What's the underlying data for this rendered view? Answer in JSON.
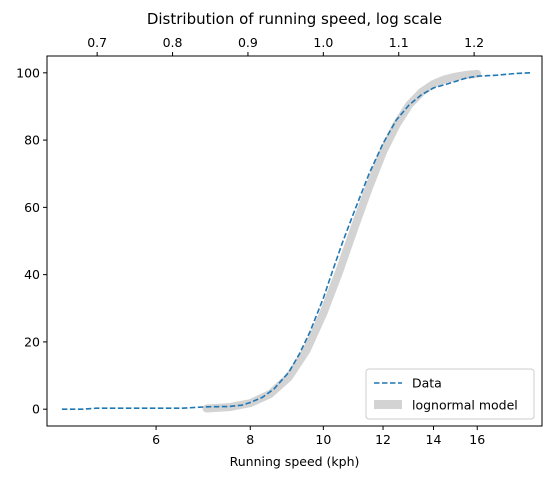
{
  "chart_data": {
    "type": "line",
    "title": "Distribution of running speed, log scale",
    "xlabel": "Running speed (kph)",
    "ylabel": "",
    "x_scale": "log",
    "xlim": [
      4.3,
      19.5
    ],
    "ylim": [
      -5,
      105
    ],
    "x_ticks": [
      6,
      8,
      10,
      12,
      14,
      16
    ],
    "y_ticks": [
      0,
      20,
      40,
      60,
      80,
      100
    ],
    "top_axis": {
      "scale": "log10 of speed",
      "ticks": [
        0.7,
        0.8,
        0.9,
        1.0,
        1.1,
        1.2
      ],
      "tick_labels": [
        "0.7",
        "0.8",
        "0.9",
        "1.0",
        "1.1",
        "1.2"
      ]
    },
    "legend": {
      "position": "lower-right"
    },
    "colors": {
      "data": "#1f77b4",
      "model": "#d3d3d3"
    },
    "series": [
      {
        "name": "Data",
        "style": "dashed",
        "x": [
          4.5,
          4.8,
          5.0,
          5.3,
          5.6,
          6.0,
          6.5,
          7.0,
          7.5,
          7.8,
          8.0,
          8.3,
          8.6,
          9.0,
          9.3,
          9.6,
          10.0,
          10.3,
          10.6,
          11.0,
          11.5,
          12.0,
          12.5,
          13.0,
          13.5,
          14.0,
          14.5,
          15.0,
          15.5,
          16.0,
          17.0,
          18.0,
          18.8
        ],
        "y": [
          0,
          0,
          0.3,
          0.3,
          0.3,
          0.3,
          0.3,
          0.7,
          0.8,
          1.2,
          2.0,
          3.5,
          6.0,
          11.0,
          16.5,
          23.0,
          33.0,
          41.5,
          49.5,
          59.0,
          70.0,
          79.0,
          86.0,
          90.5,
          93.5,
          95.5,
          96.5,
          97.5,
          98.5,
          99.0,
          99.3,
          99.8,
          100
        ]
      },
      {
        "name": "lognormal model",
        "style": "band",
        "x": [
          7.0,
          7.5,
          8.0,
          8.5,
          9.0,
          9.5,
          10.0,
          10.5,
          11.0,
          11.5,
          12.0,
          12.5,
          13.0,
          13.5,
          14.0,
          14.5,
          15.0,
          15.5,
          16.0
        ],
        "y": [
          0.2,
          0.6,
          1.8,
          4.5,
          9.5,
          17.5,
          28.5,
          41.0,
          54.0,
          66.0,
          76.5,
          84.5,
          90.5,
          94.3,
          96.7,
          98.1,
          98.9,
          99.4,
          99.7
        ]
      }
    ]
  }
}
